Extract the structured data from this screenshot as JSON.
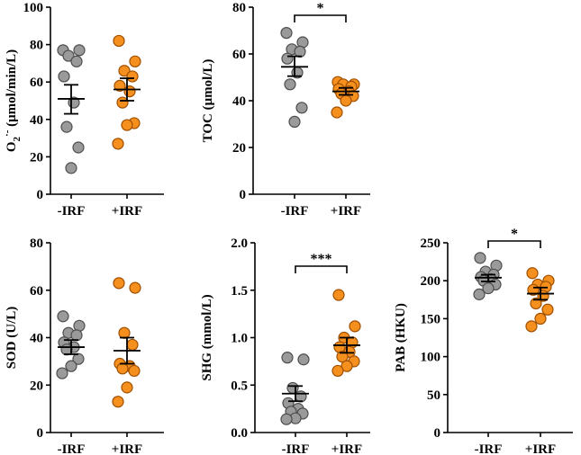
{
  "figure_title": "",
  "chart_data": [
    {
      "type": "scatter",
      "id": "o2",
      "ylabel_main": "O",
      "ylabel_sub": "2",
      "ylabel_sup": "·-",
      "ylabel_rest": " (μmol/min/L)",
      "ylim": [
        0,
        100
      ],
      "yticks": [
        0,
        20,
        40,
        60,
        80,
        100
      ],
      "categories": [
        "-IRF",
        "+IRF"
      ],
      "series": [
        {
          "name": "-IRF",
          "color": "#9a9a9a",
          "values": [
            77,
            77,
            74,
            71,
            63,
            49,
            36,
            25,
            14
          ],
          "mean": 51,
          "sem_low": 43,
          "sem_high": 58.5
        },
        {
          "name": "+IRF",
          "color": "#f5901e",
          "values": [
            82,
            71,
            66,
            63,
            58,
            55,
            49,
            38,
            37,
            27
          ],
          "mean": 56,
          "sem_low": 50,
          "sem_high": 62
        }
      ],
      "significance": ""
    },
    {
      "type": "scatter",
      "id": "toc",
      "ylabel_main": "TOC (μmol/L)",
      "ylabel_sub": "",
      "ylabel_sup": "",
      "ylabel_rest": "",
      "ylim": [
        0,
        80
      ],
      "yticks": [
        0,
        20,
        40,
        60,
        80
      ],
      "categories": [
        "-IRF",
        "+IRF"
      ],
      "series": [
        {
          "name": "-IRF",
          "color": "#9a9a9a",
          "values": [
            69,
            65,
            62,
            61,
            58,
            52,
            47,
            37,
            31
          ],
          "mean": 54.5,
          "sem_low": 50.5,
          "sem_high": 59
        },
        {
          "name": "+IRF",
          "color": "#f5901e",
          "values": [
            48,
            47,
            47,
            46,
            45,
            44,
            43,
            42,
            40,
            35
          ],
          "mean": 44,
          "sem_low": 42.5,
          "sem_high": 45.5
        }
      ],
      "significance": "*"
    },
    {
      "type": "scatter",
      "id": "sod",
      "ylabel_main": "SOD (U/L)",
      "ylabel_sub": "",
      "ylabel_sup": "",
      "ylabel_rest": "",
      "ylim": [
        0,
        80
      ],
      "yticks": [
        0,
        20,
        40,
        60,
        80
      ],
      "categories": [
        "-IRF",
        "+IRF"
      ],
      "series": [
        {
          "name": "-IRF",
          "color": "#9a9a9a",
          "values": [
            49,
            45,
            42,
            41,
            38,
            36,
            35,
            31,
            28,
            25
          ],
          "mean": 36,
          "sem_low": 33,
          "sem_high": 39
        },
        {
          "name": "+IRF",
          "color": "#f5901e",
          "values": [
            63,
            61,
            42,
            37,
            29,
            28,
            27,
            26,
            19,
            13
          ],
          "mean": 34.5,
          "sem_low": 29,
          "sem_high": 40
        }
      ],
      "significance": ""
    },
    {
      "type": "scatter",
      "id": "shg",
      "ylabel_main": "SHG (mmol/L)",
      "ylabel_sub": "",
      "ylabel_sup": "",
      "ylabel_rest": "",
      "ylim": [
        0,
        2.0
      ],
      "yticks": [
        0.0,
        0.5,
        1.0,
        1.5,
        2.0
      ],
      "tick_decimals": 1,
      "categories": [
        "-IRF",
        "+IRF"
      ],
      "series": [
        {
          "name": "-IRF",
          "color": "#9a9a9a",
          "values": [
            0.79,
            0.77,
            0.47,
            0.38,
            0.31,
            0.25,
            0.22,
            0.2,
            0.15,
            0.14
          ],
          "mean": 0.41,
          "sem_low": 0.33,
          "sem_high": 0.49
        },
        {
          "name": "+IRF",
          "color": "#f5901e",
          "values": [
            1.45,
            1.12,
            1.0,
            0.95,
            0.9,
            0.85,
            0.8,
            0.75,
            0.7,
            0.65
          ],
          "mean": 0.92,
          "sem_low": 0.84,
          "sem_high": 1.0
        },
        {
          "name": "",
          "color": "",
          "values": [],
          "mean": null,
          "sem_low": null,
          "sem_high": null
        }
      ],
      "significance": "***"
    },
    {
      "type": "scatter",
      "id": "pab",
      "ylabel_main": "PAB (HKU)",
      "ylabel_sub": "",
      "ylabel_sup": "",
      "ylabel_rest": "",
      "ylim": [
        0,
        250
      ],
      "yticks": [
        0,
        50,
        100,
        150,
        200,
        250
      ],
      "categories": [
        "-IRF",
        "+IRF"
      ],
      "series": [
        {
          "name": "-IRF",
          "color": "#9a9a9a",
          "values": [
            230,
            220,
            212,
            208,
            205,
            202,
            200,
            195,
            190,
            182
          ],
          "mean": 204,
          "sem_low": 199,
          "sem_high": 208
        },
        {
          "name": "+IRF",
          "color": "#f5901e",
          "values": [
            210,
            200,
            195,
            192,
            188,
            180,
            170,
            162,
            150,
            140
          ],
          "mean": 183,
          "sem_low": 175,
          "sem_high": 191
        }
      ],
      "significance": "*"
    }
  ]
}
